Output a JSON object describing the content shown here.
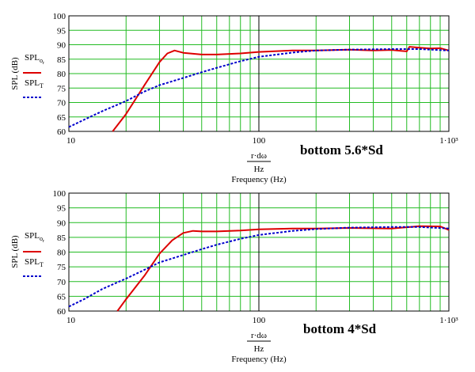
{
  "charts": [
    {
      "annotation": "bottom 5.6*Sd",
      "legend": [
        {
          "label": "SPL",
          "sub": "o_r",
          "color": "#dd0000",
          "dash": "solid"
        },
        {
          "label": "SPL",
          "sub": "T",
          "color": "#0000cc",
          "dash": "dashed"
        }
      ],
      "ylabel": "SPL (dB)",
      "xlabel_num": "r·dω",
      "xlabel_den": "Hz",
      "xlabel": "Frequency (Hz)"
    },
    {
      "annotation": "bottom 4*Sd",
      "legend": [
        {
          "label": "SPL",
          "sub": "o_r",
          "color": "#dd0000",
          "dash": "solid"
        },
        {
          "label": "SPL",
          "sub": "T",
          "color": "#0000cc",
          "dash": "dashed"
        }
      ],
      "ylabel": "SPL (dB)",
      "xlabel_num": "r·dω",
      "xlabel_den": "Hz",
      "xlabel": "Frequency (Hz)"
    }
  ],
  "chart_data": [
    {
      "type": "line",
      "xscale": "log",
      "xlim": [
        10,
        1000
      ],
      "ylim": [
        60,
        100
      ],
      "x_ticks": [
        "10",
        "100",
        "1·10³"
      ],
      "y_ticks": [
        60,
        65,
        70,
        75,
        80,
        85,
        90,
        95,
        100
      ],
      "grid": true,
      "series": [
        {
          "name": "SPL_o_r",
          "color": "#dd0000",
          "x": [
            17,
            20,
            25,
            30,
            33,
            36,
            40,
            50,
            60,
            80,
            100,
            150,
            200,
            300,
            400,
            500,
            600,
            620,
            700,
            800,
            900,
            1000
          ],
          "y": [
            60,
            66,
            76,
            84,
            87,
            88,
            87.2,
            86.6,
            86.6,
            87,
            87.5,
            88,
            88,
            88.3,
            88,
            88.2,
            87.7,
            89.3,
            89,
            88.7,
            88.8,
            88
          ]
        },
        {
          "name": "SPL_T",
          "color": "#0000cc",
          "x": [
            10,
            12,
            15,
            20,
            25,
            30,
            40,
            50,
            60,
            80,
            100,
            150,
            200,
            300,
            500,
            700,
            1000
          ],
          "y": [
            61.5,
            64,
            67,
            70.5,
            73.8,
            76,
            78.5,
            80.5,
            82,
            84.3,
            85.8,
            87.3,
            88,
            88.3,
            88.5,
            88.5,
            88
          ]
        }
      ]
    },
    {
      "type": "line",
      "xscale": "log",
      "xlim": [
        10,
        1000
      ],
      "ylim": [
        60,
        100
      ],
      "x_ticks": [
        "10",
        "100",
        "1·10³"
      ],
      "y_ticks": [
        60,
        65,
        70,
        75,
        80,
        85,
        90,
        95,
        100
      ],
      "grid": true,
      "series": [
        {
          "name": "SPL_o_r",
          "color": "#dd0000",
          "x": [
            18,
            20,
            25,
            30,
            35,
            40,
            45,
            50,
            60,
            80,
            100,
            150,
            200,
            300,
            500,
            700,
            900,
            1000
          ],
          "y": [
            60,
            64,
            72,
            79.5,
            84,
            86.5,
            87.2,
            87,
            87,
            87.3,
            87.7,
            88,
            88,
            88.2,
            88,
            88.8,
            88.7,
            87.5
          ]
        },
        {
          "name": "SPL_T",
          "color": "#0000cc",
          "x": [
            10,
            12,
            15,
            20,
            25,
            30,
            40,
            50,
            60,
            80,
            100,
            150,
            200,
            300,
            500,
            700,
            1000
          ],
          "y": [
            61.5,
            64,
            67.5,
            71,
            74,
            76.5,
            79,
            81,
            82.5,
            84.5,
            85.8,
            87.2,
            87.8,
            88.3,
            88.5,
            88.5,
            88
          ]
        }
      ]
    }
  ]
}
